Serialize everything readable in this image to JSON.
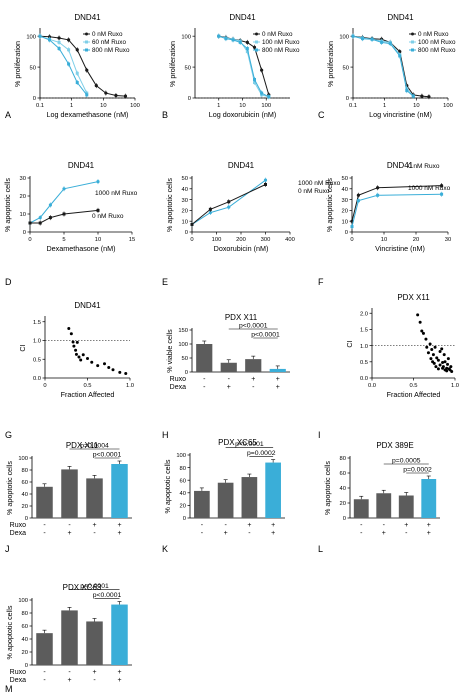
{
  "colors": {
    "black": "#1a1a1a",
    "blue": "#3aaed8",
    "lightblue": "#7fcfe8",
    "gray": "#5c5c5c"
  },
  "chart_data": [
    {
      "id": "A",
      "panel_label": "A",
      "type": "line",
      "title": "DND41",
      "xlabel": "Log dexamethasone (nM)",
      "ylabel": "% proliferation",
      "xscale": "log",
      "xlim": [
        0.1,
        100
      ],
      "ylim": [
        0,
        110
      ],
      "xticks": [
        0.1,
        1,
        10,
        100
      ],
      "xticklabels": [
        "0.1",
        "1",
        "10",
        "100"
      ],
      "yticks": [
        0,
        50,
        100
      ],
      "legend": "top-right",
      "reference_line": 0,
      "series": [
        {
          "name": "0 nM Ruxo",
          "color": "#1a1a1a",
          "x": [
            0.1,
            0.2,
            0.4,
            0.8,
            1.5,
            3,
            6,
            12,
            25,
            50
          ],
          "y": [
            100,
            99,
            97,
            94,
            78,
            45,
            20,
            8,
            4,
            3
          ]
        },
        {
          "name": "60 nM Ruxo",
          "color": "#7fcfe8",
          "x": [
            0.1,
            0.2,
            0.4,
            0.8,
            1.5,
            3
          ],
          "y": [
            100,
            95,
            90,
            78,
            40,
            8
          ]
        },
        {
          "name": "800 nM Ruxo",
          "color": "#3aaed8",
          "x": [
            0.1,
            0.2,
            0.4,
            0.8,
            1.5,
            3
          ],
          "y": [
            100,
            94,
            80,
            55,
            25,
            5
          ]
        }
      ]
    },
    {
      "id": "B",
      "panel_label": "B",
      "type": "line",
      "title": "DND41",
      "xlabel": "Log doxorubicin (nM)",
      "ylabel": "% proliferation",
      "xscale": "log",
      "xlim": [
        0.1,
        1000
      ],
      "ylim": [
        0,
        110
      ],
      "xticks": [
        1,
        10,
        100
      ],
      "xticklabels": [
        "1",
        "10",
        "100"
      ],
      "yticks": [
        0,
        50,
        100
      ],
      "legend": "top-right",
      "reference_line": 0,
      "series": [
        {
          "name": "0 nM Ruxo",
          "color": "#1a1a1a",
          "x": [
            1,
            2,
            4,
            8,
            16,
            32,
            64,
            128
          ],
          "y": [
            100,
            98,
            95,
            93,
            90,
            82,
            45,
            5
          ]
        },
        {
          "name": "100 nM Ruxo",
          "color": "#7fcfe8",
          "x": [
            1,
            2,
            4,
            8,
            16,
            32,
            64,
            128
          ],
          "y": [
            100,
            97,
            95,
            92,
            75,
            25,
            5,
            2
          ]
        },
        {
          "name": "800 nM Ruxo",
          "color": "#3aaed8",
          "x": [
            1,
            2,
            4,
            8,
            16,
            32,
            64,
            128
          ],
          "y": [
            100,
            96,
            94,
            90,
            80,
            30,
            8,
            2
          ]
        }
      ]
    },
    {
      "id": "C",
      "panel_label": "C",
      "type": "line",
      "title": "DND41",
      "xlabel": "Log vincristine (nM)",
      "ylabel": "% proliferation",
      "xscale": "log",
      "xlim": [
        0.1,
        100
      ],
      "ylim": [
        0,
        110
      ],
      "xticks": [
        0.1,
        1,
        10,
        100
      ],
      "xticklabels": [
        "0.1",
        "1",
        "10",
        "100"
      ],
      "yticks": [
        0,
        50,
        100
      ],
      "legend": "top-right",
      "reference_line": 0,
      "series": [
        {
          "name": "0 nM Ruxo",
          "color": "#1a1a1a",
          "x": [
            0.1,
            0.2,
            0.4,
            0.8,
            1.5,
            3,
            5,
            8,
            15,
            25
          ],
          "y": [
            100,
            98,
            96,
            95,
            90,
            75,
            20,
            5,
            3,
            2
          ]
        },
        {
          "name": "100 nM Ruxo",
          "color": "#7fcfe8",
          "x": [
            0.1,
            0.2,
            0.4,
            0.8,
            1.5,
            3,
            5,
            8
          ],
          "y": [
            100,
            97,
            95,
            92,
            90,
            70,
            15,
            3
          ]
        },
        {
          "name": "800 nM Ruxo",
          "color": "#3aaed8",
          "x": [
            0.1,
            0.2,
            0.4,
            0.8,
            1.5,
            3,
            5,
            8
          ],
          "y": [
            100,
            96,
            95,
            90,
            88,
            68,
            12,
            3
          ]
        }
      ]
    },
    {
      "id": "D",
      "panel_label": "D",
      "type": "line",
      "title": "DND41",
      "xlabel": "Dexamethasone (nM)",
      "ylabel": "% apoptotic cells",
      "xlim": [
        0,
        15
      ],
      "ylim": [
        0,
        30
      ],
      "xticks": [
        0,
        5,
        10,
        15
      ],
      "yticks": [
        0,
        10,
        20,
        30
      ],
      "series": [
        {
          "name": "1000 nM Ruxo",
          "color": "#3aaed8",
          "x": [
            0,
            1.5,
            3,
            5,
            10
          ],
          "y": [
            5,
            8,
            15,
            24,
            28
          ]
        },
        {
          "name": "0 nM Ruxo",
          "color": "#1a1a1a",
          "x": [
            0,
            1.5,
            3,
            5,
            10
          ],
          "y": [
            5,
            5,
            8,
            10,
            12
          ]
        }
      ]
    },
    {
      "id": "E",
      "panel_label": "E",
      "type": "line",
      "title": "DND41",
      "xlabel": "Doxorubicin (nM)",
      "ylabel": "% apoptotic cells",
      "xlim": [
        0,
        400
      ],
      "ylim": [
        0,
        50
      ],
      "xticks": [
        0,
        100,
        200,
        300,
        400
      ],
      "yticks": [
        0,
        10,
        20,
        30,
        40,
        50
      ],
      "series": [
        {
          "name": "1000 nM Ruxo",
          "color": "#3aaed8",
          "x": [
            0,
            75,
            150,
            300
          ],
          "y": [
            7,
            18,
            23,
            48
          ]
        },
        {
          "name": "0 nM Ruxo",
          "color": "#1a1a1a",
          "x": [
            0,
            75,
            150,
            300
          ],
          "y": [
            7,
            21,
            28,
            44
          ]
        }
      ]
    },
    {
      "id": "F",
      "panel_label": "F",
      "type": "line",
      "title": "DND41",
      "xlabel": "Vincristine (nM)",
      "ylabel": "% apoptotic cells",
      "xlim": [
        0,
        30
      ],
      "ylim": [
        0,
        50
      ],
      "xticks": [
        0,
        10,
        20,
        30
      ],
      "yticks": [
        0,
        10,
        20,
        30,
        40,
        50
      ],
      "series": [
        {
          "name": "0 nM Ruxo",
          "color": "#1a1a1a",
          "x": [
            0,
            2,
            8,
            28
          ],
          "y": [
            10,
            34,
            41,
            43
          ]
        },
        {
          "name": "1000 nM Ruxo",
          "color": "#3aaed8",
          "x": [
            0,
            2,
            8,
            28
          ],
          "y": [
            5,
            29,
            34,
            35
          ]
        }
      ]
    },
    {
      "id": "G",
      "panel_label": "G",
      "type": "scatter",
      "title": "DND41",
      "xlabel": "Fraction Affected",
      "ylabel": "CI",
      "xlim": [
        0,
        1
      ],
      "ylim": [
        0,
        1.6
      ],
      "xticks": [
        0,
        0.5,
        1
      ],
      "xticklabels": [
        "0",
        "0.5",
        "1.0"
      ],
      "yticks": [
        0,
        0.5,
        1,
        1.5
      ],
      "yticklabels": [
        "0.0",
        "0.5",
        "1.0",
        "1.5"
      ],
      "reference_line": 1,
      "points": {
        "x": [
          0.28,
          0.31,
          0.33,
          0.34,
          0.36,
          0.37,
          0.38,
          0.4,
          0.42,
          0.45,
          0.5,
          0.55,
          0.62,
          0.7,
          0.75,
          0.8,
          0.88,
          0.95
        ],
        "y": [
          1.32,
          1.18,
          0.96,
          0.85,
          0.74,
          0.63,
          0.95,
          0.56,
          0.48,
          0.62,
          0.52,
          0.42,
          0.33,
          0.38,
          0.28,
          0.22,
          0.15,
          0.12
        ]
      }
    },
    {
      "id": "H",
      "panel_label": "H",
      "type": "bar",
      "title": "PDX X11",
      "ylabel": "% viable cells",
      "ylim": [
        0,
        150
      ],
      "yticks": [
        0,
        50,
        100,
        150
      ],
      "values": [
        100,
        33,
        46,
        11
      ],
      "colors": [
        "#5c5c5c",
        "#5c5c5c",
        "#5c5c5c",
        "#3aaed8"
      ],
      "row_labels": [
        "Ruxo",
        "Dexa"
      ],
      "conditions": [
        [
          "-",
          "-"
        ],
        [
          "-",
          "+"
        ],
        [
          "+",
          "-"
        ],
        [
          "+",
          "+"
        ]
      ],
      "annotations": [
        {
          "text": "p<0.0001",
          "from": 1,
          "to": 3
        },
        {
          "text": "p<0.0001",
          "from": 2,
          "to": 3
        }
      ]
    },
    {
      "id": "I",
      "panel_label": "I",
      "type": "scatter",
      "title": "PDX X11",
      "xlabel": "Fraction Affected",
      "ylabel": "CI",
      "xlim": [
        0,
        1
      ],
      "ylim": [
        0,
        2.1
      ],
      "xticks": [
        0,
        0.5,
        1
      ],
      "xticklabels": [
        "0.0",
        "0.5",
        "1.0"
      ],
      "yticks": [
        0,
        0.5,
        1,
        1.5,
        2
      ],
      "yticklabels": [
        "0.0",
        "0.5",
        "1.0",
        "1.5",
        "2.0"
      ],
      "reference_line": 1,
      "points": {
        "x": [
          0.55,
          0.58,
          0.6,
          0.62,
          0.65,
          0.66,
          0.68,
          0.7,
          0.71,
          0.72,
          0.73,
          0.74,
          0.75,
          0.76,
          0.77,
          0.78,
          0.8,
          0.8,
          0.82,
          0.82,
          0.84,
          0.85,
          0.85,
          0.86,
          0.87,
          0.88,
          0.88,
          0.9,
          0.9,
          0.91,
          0.92,
          0.93,
          0.94,
          0.95,
          0.96
        ],
        "y": [
          1.95,
          1.72,
          1.45,
          1.38,
          1.2,
          0.95,
          0.78,
          1.05,
          0.6,
          0.88,
          0.5,
          0.72,
          0.45,
          0.95,
          0.35,
          0.62,
          0.55,
          0.28,
          0.82,
          0.4,
          0.9,
          0.3,
          0.48,
          0.35,
          0.72,
          0.25,
          0.5,
          0.22,
          0.3,
          0.42,
          0.6,
          0.28,
          0.25,
          0.35,
          0.2
        ]
      }
    },
    {
      "id": "J",
      "panel_label": "J",
      "type": "bar",
      "title": "PDX X11",
      "ylabel": "% apoptotic cells",
      "ylim": [
        0,
        100
      ],
      "yticks": [
        0,
        20,
        40,
        60,
        80,
        100
      ],
      "values": [
        52,
        81,
        66,
        90
      ],
      "colors": [
        "#5c5c5c",
        "#5c5c5c",
        "#5c5c5c",
        "#3aaed8"
      ],
      "row_labels": [
        "Ruxo",
        "Dexa"
      ],
      "conditions": [
        [
          "-",
          "-"
        ],
        [
          "-",
          "+"
        ],
        [
          "+",
          "-"
        ],
        [
          "+",
          "+"
        ]
      ],
      "annotations": [
        {
          "text": "p=0.0004",
          "from": 1,
          "to": 3
        },
        {
          "text": "p<0.0001",
          "from": 2,
          "to": 3
        }
      ]
    },
    {
      "id": "K",
      "panel_label": "K",
      "type": "bar",
      "title": "PDX XC65",
      "ylabel": "% apoptotic cells",
      "ylim": [
        0,
        100
      ],
      "yticks": [
        0,
        20,
        40,
        60,
        80,
        100
      ],
      "values": [
        43,
        56,
        65,
        88
      ],
      "colors": [
        "#5c5c5c",
        "#5c5c5c",
        "#5c5c5c",
        "#3aaed8"
      ],
      "row_labels": [],
      "conditions": [
        [
          "-",
          "-"
        ],
        [
          "-",
          "+"
        ],
        [
          "+",
          "-"
        ],
        [
          "+",
          "+"
        ]
      ],
      "annotations": [
        {
          "text": "p<0.0001",
          "from": 1,
          "to": 3
        },
        {
          "text": "p=0.0002",
          "from": 2,
          "to": 3
        }
      ]
    },
    {
      "id": "L",
      "panel_label": "L",
      "type": "bar",
      "title": "PDX 389E",
      "ylabel": "% apoptotic cells",
      "ylim": [
        0,
        80
      ],
      "yticks": [
        0,
        20,
        40,
        60,
        80
      ],
      "values": [
        25,
        33,
        30,
        52
      ],
      "colors": [
        "#5c5c5c",
        "#5c5c5c",
        "#5c5c5c",
        "#3aaed8"
      ],
      "row_labels": [],
      "conditions": [
        [
          "-",
          "-"
        ],
        [
          "-",
          "+"
        ],
        [
          "+",
          "-"
        ],
        [
          "+",
          "+"
        ]
      ],
      "annotations": [
        {
          "text": "p=0.0005",
          "from": 1,
          "to": 3
        },
        {
          "text": "p=0.0002",
          "from": 2,
          "to": 3
        }
      ]
    },
    {
      "id": "M",
      "panel_label": "M",
      "type": "bar",
      "title": "PDX XC63",
      "ylabel": "% apoptotic cells",
      "ylim": [
        0,
        100
      ],
      "yticks": [
        0,
        20,
        40,
        60,
        80,
        100
      ],
      "values": [
        49,
        84,
        67,
        93
      ],
      "colors": [
        "#5c5c5c",
        "#5c5c5c",
        "#5c5c5c",
        "#3aaed8"
      ],
      "row_labels": [
        "Ruxo",
        "Dexa"
      ],
      "conditions": [
        [
          "-",
          "-"
        ],
        [
          "-",
          "+"
        ],
        [
          "+",
          "-"
        ],
        [
          "+",
          "+"
        ]
      ],
      "annotations": [
        {
          "text": "p<0.0001",
          "from": 1,
          "to": 3
        },
        {
          "text": "p<0.0001",
          "from": 2,
          "to": 3
        }
      ]
    }
  ]
}
